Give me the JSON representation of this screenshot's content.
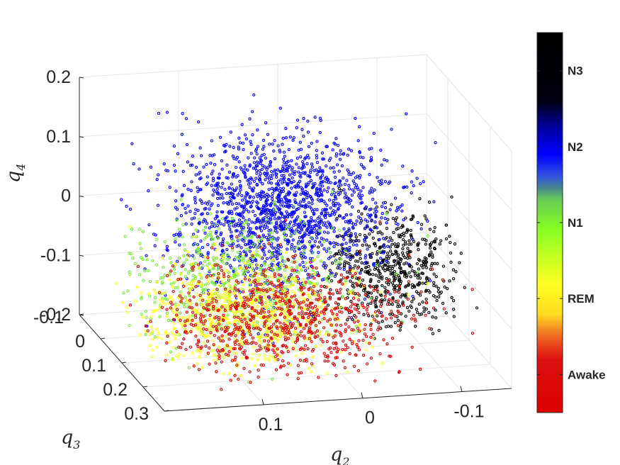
{
  "chart_data": {
    "type": "scatter",
    "view": "3d",
    "axes": {
      "x": {
        "label": "q",
        "sub": "2",
        "ticks": [
          "0.1",
          "0",
          "-0.1"
        ],
        "tick_values": [
          0.1,
          0,
          -0.1
        ],
        "range": [
          -0.15,
          0.2
        ]
      },
      "y": {
        "label": "q",
        "sub": "3",
        "ticks": [
          "-0.1",
          "0",
          "0.1",
          "0.2",
          "0.3"
        ],
        "tick_values": [
          -0.1,
          0,
          0.1,
          0.2,
          0.3
        ],
        "range": [
          -0.1,
          0.3
        ]
      },
      "z": {
        "label": "q",
        "sub": "4",
        "ticks": [
          "0.2",
          "0.1",
          "0",
          "-0.1",
          "-0.2"
        ],
        "tick_values": [
          0.2,
          0.1,
          0,
          -0.1,
          -0.2
        ],
        "range": [
          -0.2,
          0.2
        ]
      }
    },
    "grid": true,
    "colorbar": {
      "position": "right",
      "labels": [
        "N3",
        "N2",
        "N1",
        "REM",
        "Awake"
      ],
      "stops": [
        {
          "t": 0.0,
          "color": "#000000"
        },
        {
          "t": 0.18,
          "color": "#000010"
        },
        {
          "t": 0.25,
          "color": "#0000a0"
        },
        {
          "t": 0.32,
          "color": "#0000ff"
        },
        {
          "t": 0.38,
          "color": "#3355dd"
        },
        {
          "t": 0.41,
          "color": "#4a8a8a"
        },
        {
          "t": 0.44,
          "color": "#66cc55"
        },
        {
          "t": 0.52,
          "color": "#88ff22"
        },
        {
          "t": 0.58,
          "color": "#bbff22"
        },
        {
          "t": 0.66,
          "color": "#ffff22"
        },
        {
          "t": 0.74,
          "color": "#ffdd22"
        },
        {
          "t": 0.8,
          "color": "#ee6622"
        },
        {
          "t": 0.86,
          "color": "#dd1111"
        },
        {
          "t": 1.0,
          "color": "#dd0000"
        }
      ]
    },
    "clusters": [
      {
        "stage": "N3",
        "color": "#000000",
        "count": 650,
        "center": [
          -0.09,
          0.02,
          -0.11
        ],
        "spread": [
          0.035,
          0.05,
          0.045
        ]
      },
      {
        "stage": "N2",
        "color": "#0000ff",
        "count": 1700,
        "center": [
          0.02,
          0.0,
          0.0
        ],
        "spread": [
          0.055,
          0.06,
          0.06
        ]
      },
      {
        "stage": "N1",
        "color": "#77ee33",
        "count": 550,
        "center": [
          0.1,
          0.15,
          -0.05
        ],
        "spread": [
          0.06,
          0.06,
          0.045
        ]
      },
      {
        "stage": "REM",
        "color": "#ffff22",
        "count": 800,
        "center": [
          0.09,
          0.17,
          -0.1
        ],
        "spread": [
          0.05,
          0.06,
          0.035
        ]
      },
      {
        "stage": "Awake",
        "color": "#dd0000",
        "count": 850,
        "center": [
          0.04,
          0.12,
          -0.14
        ],
        "spread": [
          0.06,
          0.08,
          0.035
        ]
      }
    ]
  }
}
